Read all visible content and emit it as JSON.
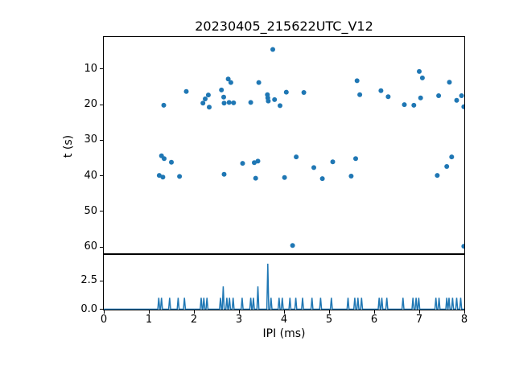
{
  "figure": {
    "title": "20230405_215622UTC_V12",
    "background": "#ffffff",
    "axis_color": "#000000"
  },
  "chart_data": [
    {
      "type": "scatter",
      "title": "20230405_215622UTC_V12",
      "xlabel": "",
      "ylabel": "t (s)",
      "xlim": [
        0,
        8
      ],
      "ylim": [
        61.8,
        1.0
      ],
      "y_inverted": true,
      "yticks": [
        10,
        20,
        30,
        40,
        50,
        60
      ],
      "ytick_labels": [
        "10",
        "20",
        "30",
        "40",
        "50",
        "60"
      ],
      "grid": false,
      "legend": null,
      "marker_color": "#1f77b4",
      "marker_size_px": 6,
      "points": [
        [
          3.75,
          4.5
        ],
        [
          1.33,
          20.2
        ],
        [
          1.83,
          16.3
        ],
        [
          2.2,
          19.6
        ],
        [
          2.25,
          18.4
        ],
        [
          2.32,
          17.3
        ],
        [
          2.34,
          20.7
        ],
        [
          2.61,
          15.9
        ],
        [
          2.66,
          17.9
        ],
        [
          2.67,
          19.6
        ],
        [
          2.76,
          12.8
        ],
        [
          2.82,
          13.8
        ],
        [
          2.78,
          19.4
        ],
        [
          2.88,
          19.5
        ],
        [
          3.26,
          19.4
        ],
        [
          3.44,
          13.8
        ],
        [
          3.63,
          17.2
        ],
        [
          3.64,
          18.1
        ],
        [
          3.65,
          19.0
        ],
        [
          3.79,
          18.6
        ],
        [
          3.91,
          20.3
        ],
        [
          4.05,
          16.5
        ],
        [
          4.44,
          16.6
        ],
        [
          5.62,
          13.3
        ],
        [
          5.68,
          17.2
        ],
        [
          6.15,
          16.1
        ],
        [
          6.31,
          17.8
        ],
        [
          6.67,
          20.0
        ],
        [
          6.88,
          20.2
        ],
        [
          7.0,
          10.7
        ],
        [
          7.07,
          12.5
        ],
        [
          7.03,
          18.1
        ],
        [
          7.43,
          17.5
        ],
        [
          7.67,
          13.7
        ],
        [
          7.83,
          18.8
        ],
        [
          7.94,
          17.5
        ],
        [
          7.99,
          20.6
        ],
        [
          1.23,
          39.9
        ],
        [
          1.31,
          40.4
        ],
        [
          1.28,
          34.4
        ],
        [
          1.34,
          35.2
        ],
        [
          1.5,
          36.2
        ],
        [
          1.68,
          40.2
        ],
        [
          2.67,
          39.6
        ],
        [
          3.08,
          36.5
        ],
        [
          3.34,
          36.3
        ],
        [
          3.42,
          35.9
        ],
        [
          3.37,
          40.7
        ],
        [
          4.01,
          40.5
        ],
        [
          4.27,
          34.7
        ],
        [
          4.66,
          37.7
        ],
        [
          4.85,
          40.8
        ],
        [
          5.08,
          36.1
        ],
        [
          5.49,
          40.1
        ],
        [
          5.59,
          35.2
        ],
        [
          7.4,
          39.9
        ],
        [
          7.61,
          37.4
        ],
        [
          7.72,
          34.7
        ],
        [
          4.19,
          59.6
        ],
        [
          7.99,
          59.8
        ]
      ]
    },
    {
      "type": "bar",
      "title": "",
      "xlabel": "IPI (ms)",
      "ylabel": "",
      "xlim": [
        0,
        8
      ],
      "ylim": [
        0,
        4.77
      ],
      "xticks": [
        0,
        1,
        2,
        3,
        4,
        5,
        6,
        7,
        8
      ],
      "xtick_labels": [
        "0",
        "1",
        "2",
        "3",
        "4",
        "5",
        "6",
        "7",
        "8"
      ],
      "yticks": [
        0.0,
        2.5
      ],
      "ytick_labels": [
        "0.0",
        "2.5"
      ],
      "grid": false,
      "legend": null,
      "bar_color": "#1f77b4",
      "bars": [
        [
          1.22,
          1
        ],
        [
          1.28,
          1
        ],
        [
          1.46,
          1
        ],
        [
          1.65,
          1
        ],
        [
          1.79,
          1
        ],
        [
          2.16,
          1
        ],
        [
          2.22,
          1
        ],
        [
          2.29,
          1
        ],
        [
          2.59,
          1
        ],
        [
          2.65,
          2
        ],
        [
          2.73,
          1
        ],
        [
          2.79,
          1
        ],
        [
          2.87,
          1
        ],
        [
          3.07,
          1
        ],
        [
          3.26,
          1
        ],
        [
          3.32,
          1
        ],
        [
          3.42,
          2
        ],
        [
          3.64,
          4
        ],
        [
          3.71,
          1
        ],
        [
          3.89,
          1
        ],
        [
          3.96,
          1
        ],
        [
          4.13,
          1
        ],
        [
          4.26,
          1
        ],
        [
          4.41,
          1
        ],
        [
          4.62,
          1
        ],
        [
          4.81,
          1
        ],
        [
          5.05,
          1
        ],
        [
          5.42,
          1
        ],
        [
          5.57,
          1
        ],
        [
          5.64,
          1
        ],
        [
          5.72,
          1
        ],
        [
          6.11,
          1
        ],
        [
          6.17,
          1
        ],
        [
          6.28,
          1
        ],
        [
          6.64,
          1
        ],
        [
          6.86,
          1
        ],
        [
          6.93,
          1
        ],
        [
          6.99,
          1
        ],
        [
          7.37,
          1
        ],
        [
          7.44,
          1
        ],
        [
          7.61,
          1
        ],
        [
          7.66,
          1
        ],
        [
          7.74,
          1
        ],
        [
          7.83,
          1
        ],
        [
          7.92,
          1
        ]
      ]
    }
  ]
}
